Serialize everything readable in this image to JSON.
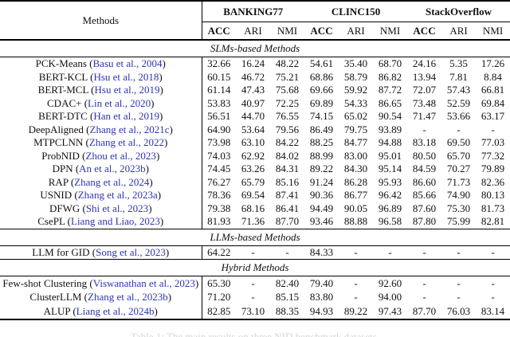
{
  "colors": {
    "citation_blue": "#2d35b0",
    "text": "#111111",
    "rule_black": "#000000",
    "caption_gray": "#d4d4d4",
    "background": "#ffffff"
  },
  "table": {
    "header": {
      "methods_label": "Methods",
      "groups": [
        {
          "label": "BANKING77",
          "metrics": [
            "ACC",
            "ARI",
            "NMI"
          ]
        },
        {
          "label": "CLINC150",
          "metrics": [
            "ACC",
            "ARI",
            "NMI"
          ]
        },
        {
          "label": "StackOverflow",
          "metrics": [
            "ACC",
            "ARI",
            "NMI"
          ]
        }
      ]
    },
    "sections": [
      {
        "title": "SLMs-based Methods",
        "rows": [
          {
            "method": "PCK-Means",
            "citation": "Basu et al., 2004",
            "values": [
              "32.66",
              "16.24",
              "48.22",
              "54.61",
              "35.40",
              "68.70",
              "24.16",
              "5.35",
              "17.26"
            ]
          },
          {
            "method": "BERT-KCL",
            "citation": "Hsu et al., 2018",
            "values": [
              "60.15",
              "46.72",
              "75.21",
              "68.86",
              "58.79",
              "86.82",
              "13.94",
              "7.81",
              "8.84"
            ]
          },
          {
            "method": "BERT-MCL",
            "citation": "Hsu et al., 2019",
            "values": [
              "61.14",
              "47.43",
              "75.68",
              "69.66",
              "59.92",
              "87.72",
              "72.07",
              "57.43",
              "66.81"
            ]
          },
          {
            "method": "CDAC+",
            "citation": "Lin et al., 2020",
            "values": [
              "53.83",
              "40.97",
              "72.25",
              "69.89",
              "54.33",
              "86.65",
              "73.48",
              "52.59",
              "69.84"
            ]
          },
          {
            "method": "BERT-DTC",
            "citation": "Han et al., 2019",
            "values": [
              "56.51",
              "44.70",
              "76.55",
              "74.15",
              "65.02",
              "90.54",
              "71.47",
              "53.66",
              "63.17"
            ]
          },
          {
            "method": "DeepAligned",
            "citation": "Zhang et al., 2021c",
            "values": [
              "64.90",
              "53.64",
              "79.56",
              "86.49",
              "79.75",
              "93.89",
              "-",
              "-",
              "-"
            ]
          },
          {
            "method": "MTPCLNN",
            "citation": "Zhang et al., 2022",
            "values": [
              "73.98",
              "63.10",
              "84.22",
              "88.25",
              "84.77",
              "94.88",
              "83.18",
              "69.50",
              "77.03"
            ]
          },
          {
            "method": "ProbNID",
            "citation": "Zhou et al., 2023",
            "values": [
              "74.03",
              "62.92",
              "84.02",
              "88.99",
              "83.00",
              "95.01",
              "80.50",
              "65.70",
              "77.32"
            ]
          },
          {
            "method": "DPN",
            "citation": "An et al., 2023b",
            "values": [
              "74.45",
              "63.26",
              "84.31",
              "89.22",
              "84.30",
              "95.14",
              "84.59",
              "70.27",
              "79.89"
            ]
          },
          {
            "method": "RAP",
            "citation": "Zhang et al., 2024",
            "values": [
              "76.27",
              "65.79",
              "85.16",
              "91.24",
              "86.28",
              "95.93",
              "86.60",
              "71.73",
              "82.36"
            ]
          },
          {
            "method": "USNID",
            "citation": "Zhang et al., 2023a",
            "values": [
              "78.36",
              "69.54",
              "87.41",
              "90.36",
              "86.77",
              "96.42",
              "85.66",
              "74.90",
              "80.13"
            ]
          },
          {
            "method": "DFWG",
            "citation": "Shi et al., 2023",
            "values": [
              "79.38",
              "68.16",
              "86.41",
              "94.49",
              "90.05",
              "96.89",
              "87.60",
              "75.30",
              "81.73"
            ]
          },
          {
            "method": "CsePL",
            "citation": "Liang and Liao, 2023",
            "values": [
              "81.93",
              "71.36",
              "87.70",
              "93.46",
              "88.88",
              "96.58",
              "87.80",
              "75.99",
              "82.81"
            ]
          }
        ]
      },
      {
        "title": "LLMs-based Methods",
        "rows": [
          {
            "method": "LLM for GID",
            "citation": "Song et al., 2023",
            "values": [
              "64.22",
              "-",
              "-",
              "84.33",
              "-",
              "-",
              "-",
              "-",
              "-"
            ]
          }
        ]
      },
      {
        "title": "Hybrid Methods",
        "rows": [
          {
            "method": "Few-shot Clustering",
            "citation": "Viswanathan et al., 2023",
            "values": [
              "65.30",
              "-",
              "82.40",
              "79.40",
              "-",
              "92.60",
              "-",
              "-",
              "-"
            ]
          },
          {
            "method": "ClusterLLM",
            "citation": "Zhang et al., 2023b",
            "values": [
              "71.20",
              "-",
              "85.15",
              "83.80",
              "-",
              "94.00",
              "-",
              "-",
              "-"
            ]
          },
          {
            "method": "ALUP",
            "citation": "Liang et al., 2024b",
            "values": [
              "82.85",
              "73.10",
              "88.35",
              "94.93",
              "89.22",
              "97.43",
              "87.70",
              "76.03",
              "83.14"
            ]
          }
        ]
      }
    ]
  },
  "caption": {
    "text": "Table 1: The main results on three NID benchmark datasets."
  }
}
